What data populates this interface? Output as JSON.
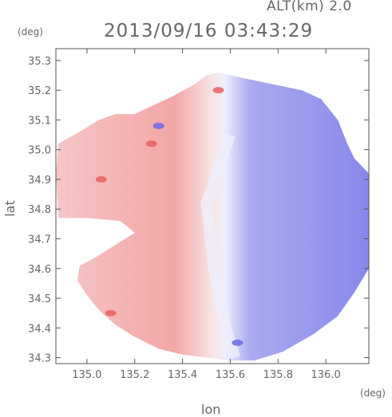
{
  "header": {
    "altitude_label": "ALT(km) 2.0",
    "timestamp": "2013/09/16 03:43:29"
  },
  "chart_data": {
    "type": "heatmap",
    "title": "2013/09/16 03:43:29",
    "subtitle": "ALT(km) 2.0",
    "xlabel": "lon",
    "ylabel": "lat",
    "x_unit": "(deg)",
    "y_unit": "(deg)",
    "xlim": [
      134.87,
      136.18
    ],
    "ylim": [
      34.28,
      35.34
    ],
    "x_ticks": [
      135.0,
      135.2,
      135.4,
      135.6,
      135.8,
      136.0
    ],
    "y_ticks": [
      34.3,
      34.4,
      34.5,
      34.6,
      34.7,
      34.8,
      34.9,
      35.0,
      35.1,
      35.2,
      35.3
    ],
    "x_tick_labels": [
      "135.0",
      "135.2",
      "135.4",
      "135.6",
      "135.8",
      "136.0"
    ],
    "y_tick_labels": [
      "34.3",
      "34.4",
      "34.5",
      "34.6",
      "34.7",
      "34.8",
      "34.9",
      "35.0",
      "35.1",
      "35.2",
      "35.3"
    ],
    "grid": false,
    "colors": {
      "negative": "#8c8cef",
      "near_zero": "#eeeefb",
      "positive": "#f3a2a2",
      "positive_strong": "#e86060",
      "negative_strong": "#6a6aea"
    },
    "coverage_outline": [
      [
        135.55,
        35.26
      ],
      [
        135.66,
        35.24
      ],
      [
        135.78,
        35.22
      ],
      [
        135.9,
        35.2
      ],
      [
        135.98,
        35.17
      ],
      [
        136.05,
        35.1
      ],
      [
        136.09,
        35.02
      ],
      [
        136.12,
        34.97
      ],
      [
        136.18,
        34.92
      ],
      [
        136.18,
        34.6
      ],
      [
        136.12,
        34.52
      ],
      [
        136.05,
        34.44
      ],
      [
        135.95,
        34.38
      ],
      [
        135.82,
        34.32
      ],
      [
        135.7,
        34.29
      ],
      [
        135.6,
        34.29
      ],
      [
        135.5,
        34.3
      ],
      [
        135.4,
        34.31
      ],
      [
        135.3,
        34.33
      ],
      [
        135.2,
        34.37
      ],
      [
        135.12,
        34.41
      ],
      [
        135.05,
        34.46
      ],
      [
        135.0,
        34.51
      ],
      [
        134.96,
        34.56
      ],
      [
        134.97,
        34.61
      ],
      [
        135.02,
        34.63
      ],
      [
        135.2,
        34.72
      ],
      [
        135.14,
        34.76
      ],
      [
        135.0,
        34.77
      ],
      [
        134.88,
        34.77
      ],
      [
        134.87,
        34.92
      ],
      [
        134.88,
        35.02
      ],
      [
        134.97,
        35.06
      ],
      [
        135.05,
        35.1
      ],
      [
        135.12,
        35.12
      ],
      [
        135.2,
        35.12
      ],
      [
        135.28,
        35.15
      ],
      [
        135.36,
        35.18
      ],
      [
        135.45,
        35.22
      ],
      [
        135.5,
        35.25
      ]
    ],
    "zero_line": [
      [
        135.6,
        35.05
      ],
      [
        135.5,
        34.82
      ],
      [
        135.53,
        34.6
      ],
      [
        135.58,
        34.4
      ],
      [
        135.62,
        34.3
      ]
    ],
    "features": [
      {
        "kind": "positive_strong",
        "lon": 135.06,
        "lat": 34.9
      },
      {
        "kind": "positive_strong",
        "lon": 135.27,
        "lat": 35.02
      },
      {
        "kind": "positive_strong",
        "lon": 135.1,
        "lat": 34.45
      },
      {
        "kind": "positive_strong",
        "lon": 135.55,
        "lat": 35.2
      },
      {
        "kind": "negative_strong",
        "lon": 135.63,
        "lat": 34.35
      },
      {
        "kind": "negative_strong",
        "lon": 135.3,
        "lat": 35.08
      }
    ]
  }
}
